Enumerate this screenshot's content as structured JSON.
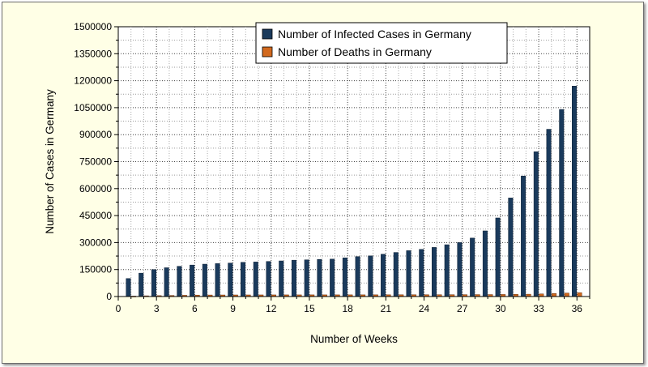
{
  "chart_data": {
    "type": "bar",
    "xlabel": "Number of Weeks",
    "ylabel": "Number of Cases in Germany",
    "xlim": [
      0,
      37
    ],
    "ylim": [
      0,
      1500000
    ],
    "x_ticks": [
      "0",
      "3",
      "6",
      "9",
      "12",
      "15",
      "18",
      "21",
      "24",
      "27",
      "30",
      "33",
      "36"
    ],
    "y_ticks": [
      "0",
      "150000",
      "300000",
      "450000",
      "600000",
      "750000",
      "900000",
      "1050000",
      "1200000",
      "1350000",
      "1500000"
    ],
    "grid": true,
    "legend_position": "top-right",
    "x": [
      1,
      2,
      3,
      4,
      5,
      6,
      7,
      8,
      9,
      10,
      11,
      12,
      13,
      14,
      15,
      16,
      17,
      18,
      19,
      20,
      21,
      22,
      23,
      24,
      25,
      26,
      27,
      28,
      29,
      30,
      31,
      32,
      33,
      34,
      35,
      36
    ],
    "series": [
      {
        "name": "Number of Infected Cases in Germany",
        "color": "#1a3a5c",
        "values": [
          100000,
          130000,
          150000,
          160000,
          168000,
          175000,
          180000,
          183000,
          186000,
          190000,
          192000,
          195000,
          198000,
          202000,
          204000,
          206000,
          208000,
          215000,
          222000,
          226000,
          235000,
          245000,
          255000,
          262000,
          273000,
          288000,
          300000,
          325000,
          365000,
          437000,
          548000,
          670000,
          805000,
          930000,
          1040000,
          1170000
        ]
      },
      {
        "name": "Number of Deaths in Germany",
        "color": "#d2691e",
        "values": [
          2000,
          4000,
          5000,
          6000,
          7000,
          8000,
          8500,
          8700,
          8900,
          9000,
          9100,
          9200,
          9300,
          9300,
          9400,
          9400,
          9400,
          9500,
          9500,
          9600,
          9700,
          9800,
          9900,
          10000,
          10100,
          10200,
          10500,
          10800,
          11000,
          11500,
          12000,
          13000,
          14500,
          16500,
          19000,
          21000
        ]
      }
    ]
  }
}
